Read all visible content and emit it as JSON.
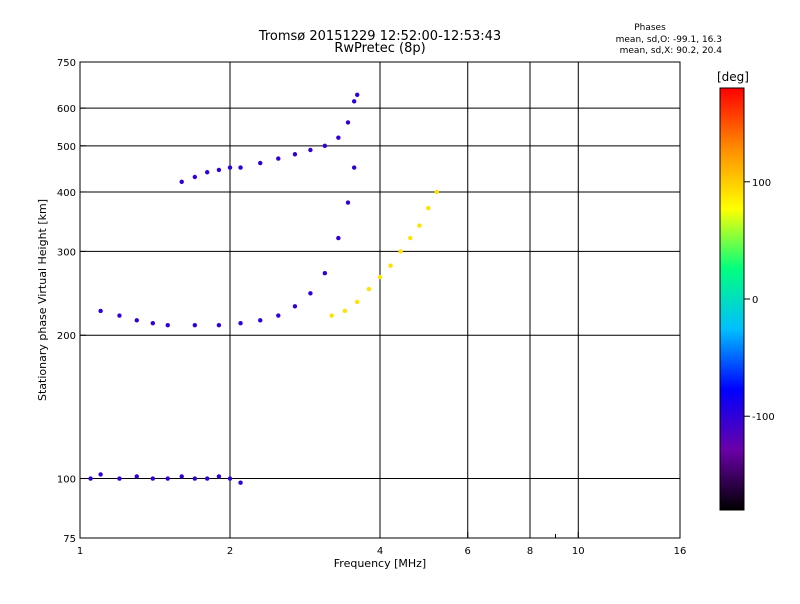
{
  "chart_data": {
    "type": "scatter",
    "title": "Tromsø 20151229 12:52:00-12:53:43",
    "subtitle": "RwPretec (8p)",
    "phase_box": {
      "heading": "Phases",
      "line1": "mean, sd,O: -99.1, 16.3",
      "line2": "mean, sd,X:  90.2, 20.4"
    },
    "xlabel": "Frequency [MHz]",
    "ylabel": "Stationary phase Virtual Height [km]",
    "xscale": "log",
    "yscale": "log",
    "xlim": [
      1,
      16
    ],
    "ylim": [
      75,
      750
    ],
    "xticks": [
      1,
      2,
      4,
      6,
      8,
      10,
      16
    ],
    "xticks_minor": [
      9
    ],
    "yticks": [
      75,
      100,
      200,
      300,
      400,
      500,
      600,
      750
    ],
    "vertical_gridlines": [
      2,
      4,
      6,
      8,
      10
    ],
    "horizontal_gridlines": [
      100,
      200,
      300,
      400,
      500,
      600
    ],
    "grid": true,
    "colorbar": {
      "label": "[deg]",
      "range": [
        -180,
        180
      ],
      "ticks": [
        100,
        0,
        -100
      ],
      "colormap": [
        "#000000",
        "#6a00a8",
        "#0000ff",
        "#00bfff",
        "#00ff7f",
        "#ffff00",
        "#ff8c00",
        "#ff0000"
      ]
    },
    "series": [
      {
        "kind": "O-trace-upper",
        "color_phase": -100,
        "x": [
          1.6,
          1.7,
          1.8,
          1.9,
          2.0,
          2.1,
          2.3,
          2.5,
          2.7,
          2.9,
          3.1,
          3.3,
          3.45,
          3.55,
          3.6
        ],
        "y": [
          420,
          430,
          440,
          445,
          450,
          450,
          460,
          470,
          480,
          490,
          500,
          520,
          560,
          620,
          640
        ]
      },
      {
        "kind": "O-trace-lower",
        "color_phase": -100,
        "x": [
          1.1,
          1.2,
          1.3,
          1.4,
          1.5,
          1.7,
          1.9,
          2.1,
          2.3,
          2.5,
          2.7,
          2.9,
          3.1,
          3.3,
          3.45,
          3.55
        ],
        "y": [
          225,
          220,
          215,
          212,
          210,
          210,
          210,
          212,
          215,
          220,
          230,
          245,
          270,
          320,
          380,
          450
        ]
      },
      {
        "kind": "E-layer",
        "color_phase": -100,
        "x": [
          1.05,
          1.1,
          1.2,
          1.3,
          1.4,
          1.5,
          1.6,
          1.7,
          1.8,
          1.9,
          2.0,
          2.1
        ],
        "y": [
          100,
          102,
          100,
          101,
          100,
          100,
          101,
          100,
          100,
          101,
          100,
          98
        ]
      },
      {
        "kind": "X-trace",
        "color_phase": 90,
        "x": [
          3.2,
          3.4,
          3.6,
          3.8,
          4.0,
          4.2,
          4.4,
          4.6,
          4.8,
          5.0,
          5.2
        ],
        "y": [
          220,
          225,
          235,
          250,
          265,
          280,
          300,
          320,
          340,
          370,
          400
        ]
      }
    ]
  }
}
